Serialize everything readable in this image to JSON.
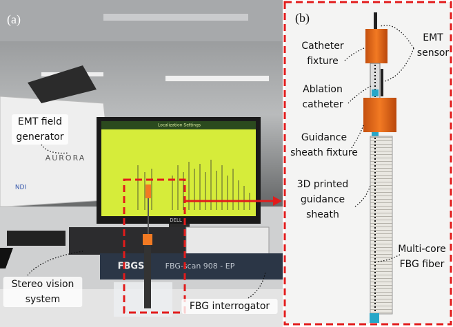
{
  "panel_a": {
    "label": "(a)",
    "annotations": [
      {
        "lines": [
          "EMT field",
          "generator"
        ]
      },
      {
        "lines": [
          "Stereo vision",
          "system"
        ]
      },
      {
        "lines": [
          "FBG interrogator"
        ]
      }
    ],
    "device_texts": {
      "generator_brand": "AURORA",
      "generator_maker": "NDI",
      "screen_title": "Localization Settings",
      "monitor_brand": "DELL",
      "interrogator_brand": "FBGS",
      "interrogator_model": "FBG-scan 908 - EP"
    }
  },
  "panel_b": {
    "label": "(b)",
    "annotations": [
      {
        "lines": [
          "Catheter",
          "fixture"
        ]
      },
      {
        "lines": [
          "EMT",
          "sensor"
        ]
      },
      {
        "lines": [
          "Ablation",
          "catheter"
        ]
      },
      {
        "lines": [
          "Guidance",
          "sheath fixture"
        ]
      },
      {
        "lines": [
          "3D printed",
          "guidance",
          "sheath"
        ]
      },
      {
        "lines": [
          "Multi-core",
          "FBG fiber"
        ]
      }
    ]
  }
}
